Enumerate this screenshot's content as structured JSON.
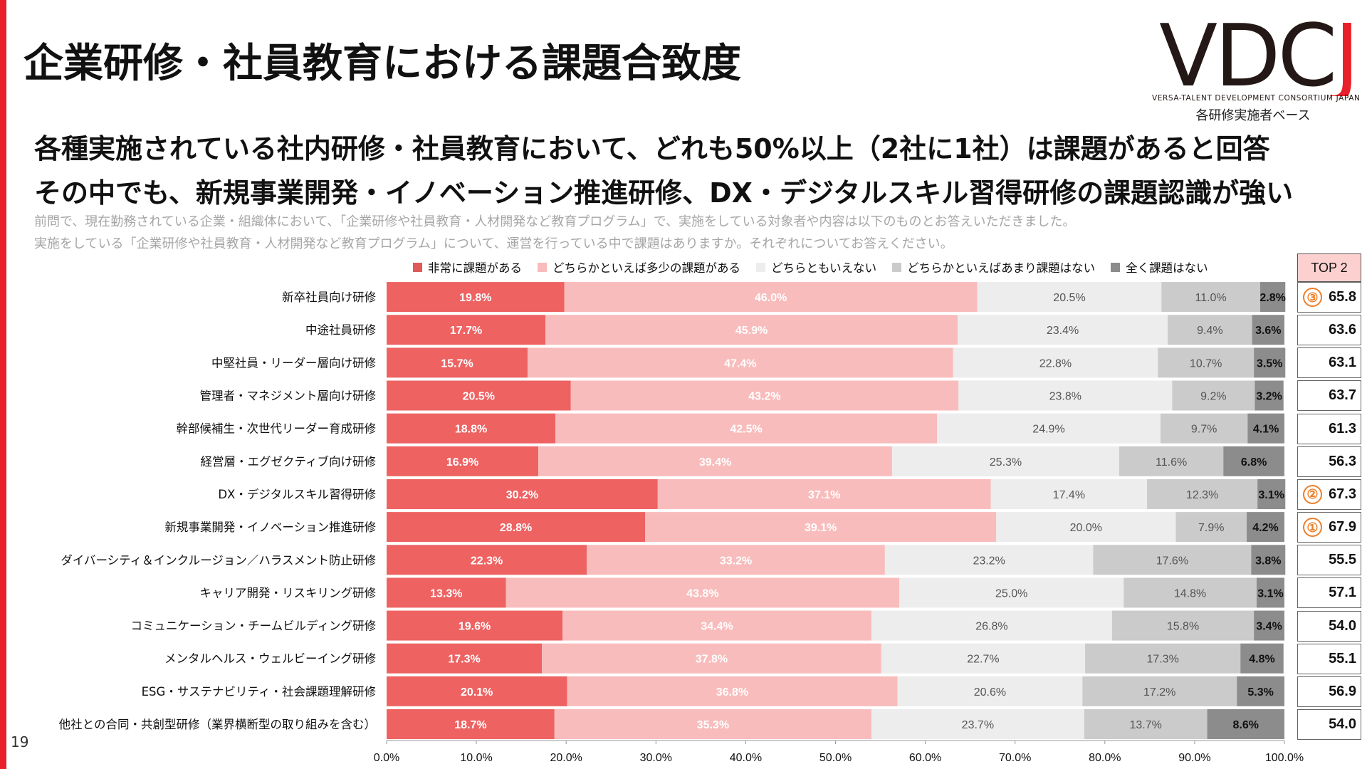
{
  "page": {
    "title": "企業研修・社員教育における課題合致度",
    "headline_1": "各種実施されている社内研修・社員教育において、どれも50%以上（2社に1社）は課題があると回答",
    "headline_2": "その中でも、新規事業開発・イノベーション推進研修、DX・デジタルスキル習得研修の課題認識が強い",
    "question_1": "前問で、現在勤務されている企業・組織体において、「企業研修や社員教育・人材開発など教育プログラム」で、実施をしている対象者や内容は以下のものとお答えいただきました。",
    "question_2": "実施をしている「企業研修や社員教育・人材開発など教育プログラム」について、運営を行っている中で課題はありますか。それぞれについてお答えください。",
    "base_note": "各研修実施者ベース",
    "page_number": "19"
  },
  "logo": {
    "mark_main": "VDC",
    "mark_accent": "J",
    "subtitle": "VERSA-TALENT DEVELOPMENT CONSORTIUM JAPAN"
  },
  "colors": {
    "accent": "#e8202a",
    "rank_badge": "#ee7e28",
    "top2_header": "#fbd0ce"
  },
  "top2": {
    "header": "TOP 2",
    "values": [
      "65.8",
      "63.6",
      "63.1",
      "63.7",
      "61.3",
      "56.3",
      "67.3",
      "67.9",
      "55.5",
      "57.1",
      "54.0",
      "55.1",
      "56.9",
      "54.0"
    ],
    "ranks": [
      "③",
      "",
      "",
      "",
      "",
      "",
      "②",
      "①",
      "",
      "",
      "",
      "",
      "",
      ""
    ]
  },
  "chart_data": {
    "type": "bar",
    "orientation": "horizontal",
    "stacked": "100%",
    "categories": [
      "新卒社員向け研修",
      "中途社員研修",
      "中堅社員・リーダー層向け研修",
      "管理者・マネジメント層向け研修",
      "幹部候補生・次世代リーダー育成研修",
      "経営層・エグゼクティブ向け研修",
      "DX・デジタルスキル習得研修",
      "新規事業開発・イノベーション推進研修",
      "ダイバーシティ＆インクルージョン／ハラスメント防止研修",
      "キャリア開発・リスキリング研修",
      "コミュニケーション・チームビルディング研修",
      "メンタルヘルス・ウェルビーイング研修",
      "ESG・サステナビリティ・社会課題理解研修",
      "他社との合同・共創型研修（業界横断型の取り組みを含む）"
    ],
    "series": [
      {
        "name": "非常に課題がある",
        "color": "#ee6262",
        "label_color": "#ffffff",
        "label_bold": true,
        "values": [
          19.8,
          17.7,
          15.7,
          20.5,
          18.8,
          16.9,
          30.2,
          28.8,
          22.3,
          13.3,
          19.6,
          17.3,
          20.1,
          18.7
        ]
      },
      {
        "name": "どちらかといえば多少の課題がある",
        "color": "#f9bcbc",
        "label_color": "#ffffff",
        "label_bold": true,
        "values": [
          46.0,
          45.9,
          47.4,
          43.2,
          42.5,
          39.4,
          37.1,
          39.1,
          33.2,
          43.8,
          34.4,
          37.8,
          36.8,
          35.3
        ]
      },
      {
        "name": "どちらともいえない",
        "color": "#ededed",
        "label_color": "#555555",
        "label_bold": false,
        "values": [
          20.5,
          23.4,
          22.8,
          23.8,
          24.9,
          25.3,
          17.4,
          20.0,
          23.2,
          25.0,
          26.8,
          22.7,
          20.6,
          23.7
        ]
      },
      {
        "name": "どちらかといえばあまり課題はない",
        "color": "#cbcbcb",
        "label_color": "#555555",
        "label_bold": false,
        "values": [
          11.0,
          9.4,
          10.7,
          9.2,
          9.7,
          11.6,
          12.3,
          7.9,
          17.6,
          14.8,
          15.8,
          17.3,
          17.2,
          13.7
        ]
      },
      {
        "name": "全く課題はない",
        "color": "#8c8c8c",
        "label_color": "#111111",
        "label_bold": true,
        "values": [
          2.8,
          3.6,
          3.5,
          3.2,
          4.1,
          6.8,
          3.1,
          4.2,
          3.8,
          3.1,
          3.4,
          4.8,
          5.3,
          8.6
        ]
      }
    ],
    "x_ticks": [
      "0.0%",
      "10.0%",
      "20.0%",
      "30.0%",
      "40.0%",
      "50.0%",
      "60.0%",
      "70.0%",
      "80.0%",
      "90.0%",
      "100.0%"
    ],
    "xlim": [
      0,
      100
    ],
    "legend_position": "top",
    "grid": false
  }
}
